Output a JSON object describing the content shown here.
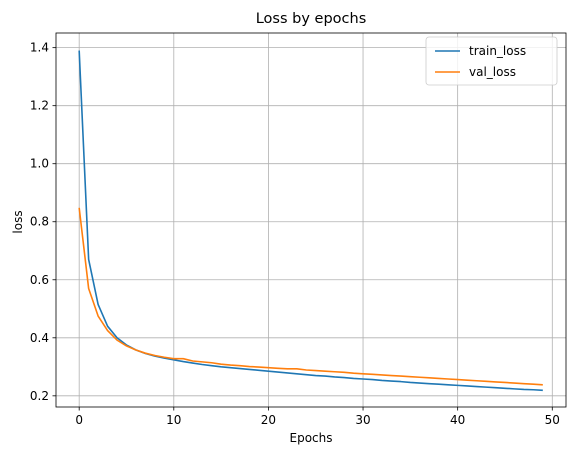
{
  "chart_data": {
    "type": "line",
    "title": "Loss by epochs",
    "xlabel": "Epochs",
    "ylabel": "loss",
    "xlim": [
      -2.45,
      51.45
    ],
    "ylim": [
      0.1615,
      1.4505
    ],
    "xticks": [
      0,
      10,
      20,
      30,
      40,
      50
    ],
    "yticks": [
      0.2,
      0.4,
      0.6,
      0.8,
      1.0,
      1.2,
      1.4
    ],
    "ytick_labels": [
      "0.2",
      "0.4",
      "0.6",
      "0.8",
      "1.0",
      "1.2",
      "1.4"
    ],
    "grid": true,
    "legend_position": "top-right",
    "x": [
      0,
      1,
      2,
      3,
      4,
      5,
      6,
      7,
      8,
      9,
      10,
      11,
      12,
      13,
      14,
      15,
      16,
      17,
      18,
      19,
      20,
      21,
      22,
      23,
      24,
      25,
      26,
      27,
      28,
      29,
      30,
      31,
      32,
      33,
      34,
      35,
      36,
      37,
      38,
      39,
      40,
      41,
      42,
      43,
      44,
      45,
      46,
      47,
      48,
      49
    ],
    "series": [
      {
        "name": "train_loss",
        "color": "#1f77b4",
        "values": [
          1.39,
          0.67,
          0.515,
          0.44,
          0.4,
          0.375,
          0.358,
          0.346,
          0.337,
          0.33,
          0.324,
          0.318,
          0.313,
          0.308,
          0.304,
          0.3,
          0.297,
          0.294,
          0.291,
          0.288,
          0.285,
          0.282,
          0.279,
          0.276,
          0.273,
          0.27,
          0.268,
          0.265,
          0.263,
          0.26,
          0.258,
          0.256,
          0.253,
          0.251,
          0.249,
          0.246,
          0.244,
          0.242,
          0.24,
          0.238,
          0.236,
          0.234,
          0.232,
          0.23,
          0.228,
          0.226,
          0.224,
          0.222,
          0.221,
          0.219
        ]
      },
      {
        "name": "val_loss",
        "color": "#ff7f0e",
        "values": [
          0.848,
          0.57,
          0.475,
          0.425,
          0.392,
          0.372,
          0.358,
          0.347,
          0.339,
          0.333,
          0.328,
          0.328,
          0.32,
          0.317,
          0.314,
          0.309,
          0.306,
          0.304,
          0.301,
          0.299,
          0.297,
          0.295,
          0.293,
          0.293,
          0.289,
          0.287,
          0.285,
          0.283,
          0.281,
          0.278,
          0.276,
          0.274,
          0.272,
          0.27,
          0.268,
          0.266,
          0.264,
          0.262,
          0.26,
          0.258,
          0.256,
          0.254,
          0.252,
          0.25,
          0.248,
          0.246,
          0.244,
          0.242,
          0.24,
          0.238
        ]
      }
    ]
  }
}
